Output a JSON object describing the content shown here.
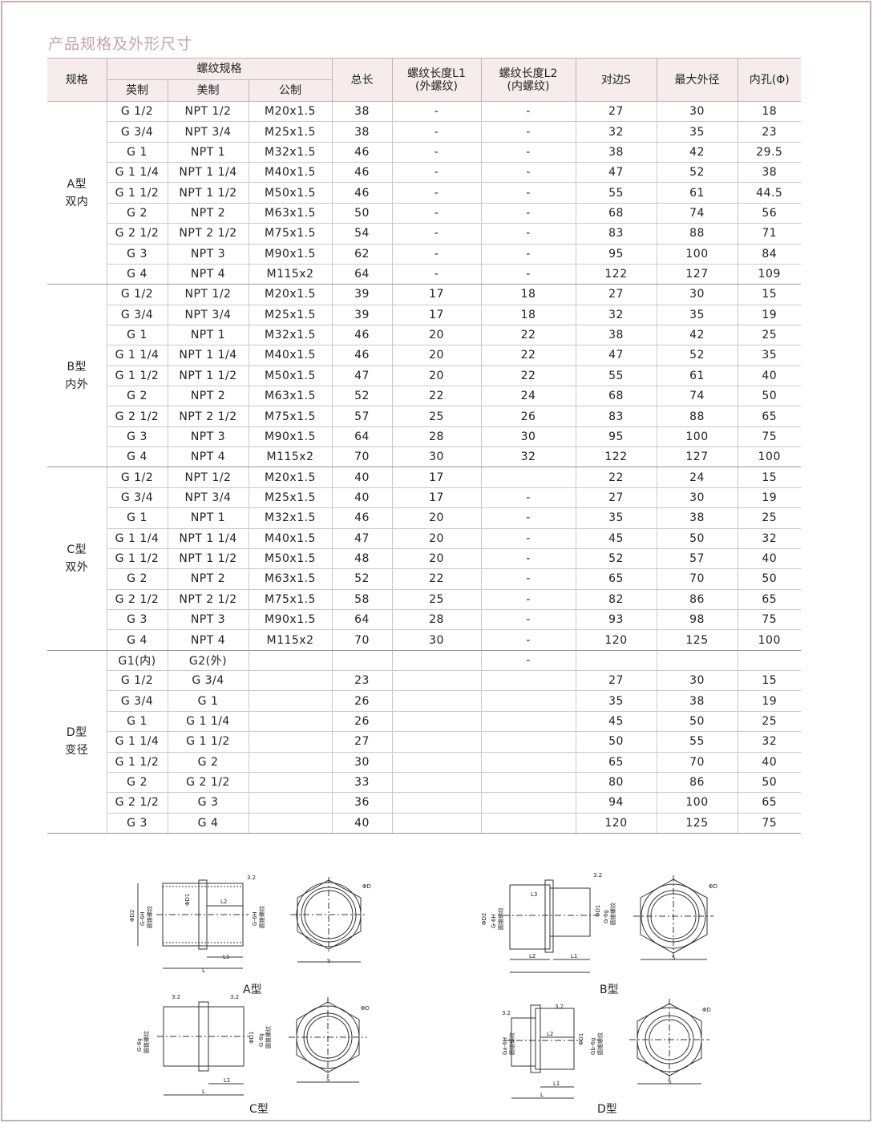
{
  "title": "产品规格及外形尺寸",
  "headers": {
    "spec": "规格",
    "thread_spec": "螺纹规格",
    "british": "英制",
    "american": "美制",
    "metric": "公制",
    "total_length": "总长",
    "l1": "螺纹长度L1",
    "l1_sub": "(外螺纹)",
    "l2": "螺纹长度L2",
    "l2_sub": "(内螺纹)",
    "across_flats": "对边S",
    "max_od": "最大外径",
    "bore": "内孔(Φ)"
  },
  "groups": [
    {
      "label": [
        "A型",
        "双内"
      ],
      "rows": [
        [
          "G 1/2",
          "NPT 1/2",
          "M20x1.5",
          "38",
          "-",
          "-",
          "27",
          "30",
          "18"
        ],
        [
          "G 3/4",
          "NPT 3/4",
          "M25x1.5",
          "38",
          "-",
          "-",
          "32",
          "35",
          "23"
        ],
        [
          "G 1",
          "NPT 1",
          "M32x1.5",
          "46",
          "-",
          "-",
          "38",
          "42",
          "29.5"
        ],
        [
          "G 1 1/4",
          "NPT 1 1/4",
          "M40x1.5",
          "46",
          "-",
          "-",
          "47",
          "52",
          "38"
        ],
        [
          "G 1 1/2",
          "NPT 1 1/2",
          "M50x1.5",
          "46",
          "-",
          "-",
          "55",
          "61",
          "44.5"
        ],
        [
          "G 2",
          "NPT 2",
          "M63x1.5",
          "50",
          "-",
          "-",
          "68",
          "74",
          "56"
        ],
        [
          "G 2 1/2",
          "NPT 2 1/2",
          "M75x1.5",
          "54",
          "-",
          "-",
          "83",
          "88",
          "71"
        ],
        [
          "G 3",
          "NPT 3",
          "M90x1.5",
          "62",
          "-",
          "-",
          "95",
          "100",
          "84"
        ],
        [
          "G 4",
          "NPT 4",
          "M115x2",
          "64",
          "-",
          "-",
          "122",
          "127",
          "109"
        ]
      ]
    },
    {
      "label": [
        "B型",
        "内外"
      ],
      "rows": [
        [
          "G 1/2",
          "NPT 1/2",
          "M20x1.5",
          "39",
          "17",
          "18",
          "27",
          "30",
          "15"
        ],
        [
          "G 3/4",
          "NPT 3/4",
          "M25x1.5",
          "39",
          "17",
          "18",
          "32",
          "35",
          "19"
        ],
        [
          "G 1",
          "NPT 1",
          "M32x1.5",
          "46",
          "20",
          "22",
          "38",
          "42",
          "25"
        ],
        [
          "G 1 1/4",
          "NPT 1 1/4",
          "M40x1.5",
          "46",
          "20",
          "22",
          "47",
          "52",
          "35"
        ],
        [
          "G 1 1/2",
          "NPT 1 1/2",
          "M50x1.5",
          "47",
          "20",
          "22",
          "55",
          "61",
          "40"
        ],
        [
          "G 2",
          "NPT 2",
          "M63x1.5",
          "52",
          "22",
          "24",
          "68",
          "74",
          "50"
        ],
        [
          "G 2 1/2",
          "NPT 2 1/2",
          "M75x1.5",
          "57",
          "25",
          "26",
          "83",
          "88",
          "65"
        ],
        [
          "G 3",
          "NPT 3",
          "M90x1.5",
          "64",
          "28",
          "30",
          "95",
          "100",
          "75"
        ],
        [
          "G 4",
          "NPT 4",
          "M115x2",
          "70",
          "30",
          "32",
          "122",
          "127",
          "100"
        ]
      ]
    },
    {
      "label": [
        "C型",
        "双外"
      ],
      "rows": [
        [
          "G 1/2",
          "NPT 1/2",
          "M20x1.5",
          "40",
          "17",
          "",
          "22",
          "24",
          "15"
        ],
        [
          "G 3/4",
          "NPT 3/4",
          "M25x1.5",
          "40",
          "17",
          "-",
          "27",
          "30",
          "19"
        ],
        [
          "G 1",
          "NPT 1",
          "M32x1.5",
          "46",
          "20",
          "-",
          "35",
          "38",
          "25"
        ],
        [
          "G 1 1/4",
          "NPT 1 1/4",
          "M40x1.5",
          "47",
          "20",
          "-",
          "45",
          "50",
          "32"
        ],
        [
          "G 1 1/2",
          "NPT 1 1/2",
          "M50x1.5",
          "48",
          "20",
          "-",
          "52",
          "57",
          "40"
        ],
        [
          "G 2",
          "NPT 2",
          "M63x1.5",
          "52",
          "22",
          "-",
          "65",
          "70",
          "50"
        ],
        [
          "G 2 1/2",
          "NPT 2 1/2",
          "M75x1.5",
          "58",
          "25",
          "-",
          "82",
          "86",
          "65"
        ],
        [
          "G 3",
          "NPT 3",
          "M90x1.5",
          "64",
          "28",
          "-",
          "93",
          "98",
          "75"
        ],
        [
          "G 4",
          "NPT 4",
          "M115x2",
          "70",
          "30",
          "-",
          "120",
          "125",
          "100"
        ]
      ]
    },
    {
      "label": [
        "D型",
        "变径"
      ],
      "rows": [
        [
          "G1(内)",
          "G2(外)",
          "",
          "",
          "",
          "-",
          "",
          "",
          ""
        ],
        [
          "G 1/2",
          "G 3/4",
          "",
          "23",
          "",
          "",
          "27",
          "30",
          "15"
        ],
        [
          "G 3/4",
          "G 1",
          "",
          "26",
          "",
          "",
          "35",
          "38",
          "19"
        ],
        [
          "G 1",
          "G 1 1/4",
          "",
          "26",
          "",
          "",
          "45",
          "50",
          "25"
        ],
        [
          "G 1 1/4",
          "G 1 1/2",
          "",
          "27",
          "",
          "",
          "50",
          "55",
          "32"
        ],
        [
          "G 1 1/2",
          "G 2",
          "",
          "30",
          "",
          "",
          "65",
          "70",
          "40"
        ],
        [
          "G 2",
          "G 2 1/2",
          "",
          "33",
          "",
          "",
          "80",
          "86",
          "50"
        ],
        [
          "G 2 1/2",
          "G 3",
          "",
          "36",
          "",
          "",
          "94",
          "100",
          "65"
        ],
        [
          "G 3",
          "G 4",
          "",
          "40",
          "",
          "",
          "120",
          "125",
          "75"
        ]
      ]
    }
  ],
  "drawings": {
    "captions": [
      "A型",
      "B型",
      "C型",
      "D型"
    ],
    "labels": {
      "l": "L",
      "l1": "L1",
      "l2": "L2",
      "l3": "L3",
      "s": "S",
      "d": "ΦD",
      "d1": "ΦD1",
      "d2": "ΦD2",
      "roughness": "3.2",
      "g6h": "G-6H",
      "g6g": "G-6g",
      "ga": "Ga-6H",
      "gb": "Gb-6g",
      "taper": "圆锥螺纹"
    }
  }
}
